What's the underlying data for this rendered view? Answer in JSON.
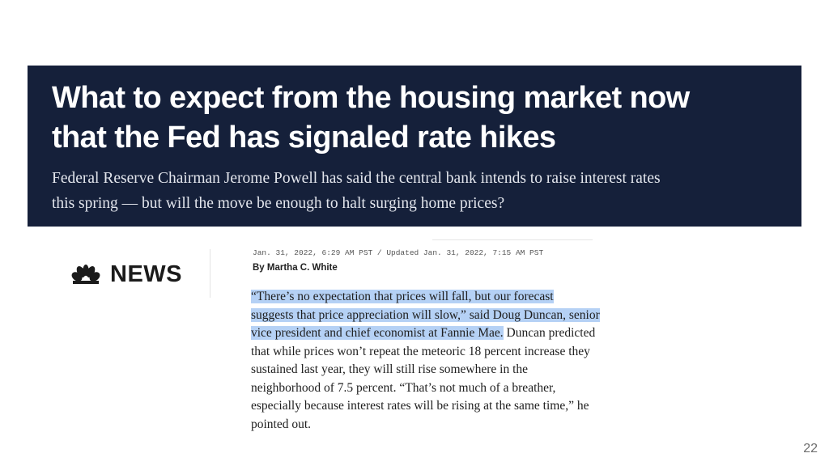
{
  "article": {
    "headline_line1": "What to expect from the housing market now",
    "headline_line2": "that the Fed has signaled rate hikes",
    "dek_line1": "Federal Reserve Chairman Jerome Powell has said the central bank intends to raise interest rates",
    "dek_line2": "this spring — but will the move be enough to halt surging home prices?",
    "logo_text": "NEWS",
    "logo_icon": "nbc-peacock-icon",
    "dateline": "Jan. 31, 2022, 6:29 AM PST / Updated Jan. 31, 2022, 7:15 AM PST",
    "byline": "By Martha C. White",
    "body": {
      "l1": "“There’s no expectation that prices will fall, but our forecast",
      "l2": "suggests that price appreciation will slow,” said Doug Duncan, senior",
      "l3_highlight": "vice president and chief economist at Fannie Mae.",
      "l3_rest": " Duncan predicted",
      "l4": "that while prices won’t repeat the meteoric 18 percent increase they",
      "l5": "sustained last year, they will still rise somewhere in the",
      "l6": "neighborhood of 7.5 percent. “That’s not much of a breather,",
      "l7": "especially because interest rates will be rising at the same time,” he",
      "l8": "pointed out."
    }
  },
  "page_number": "22",
  "colors": {
    "banner_bg": "#15203a",
    "highlight": "#b5d1f5"
  }
}
